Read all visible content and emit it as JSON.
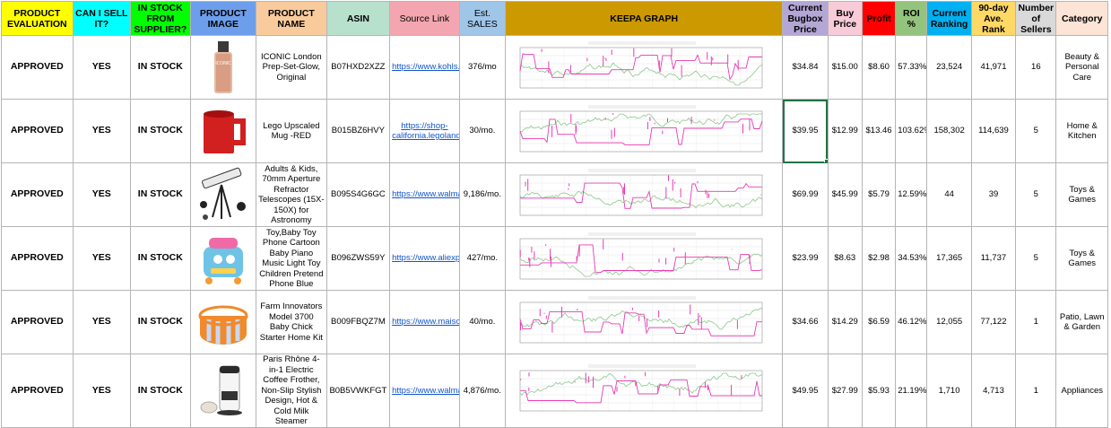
{
  "colors": {
    "yellow": "#ffff00",
    "cyan": "#00ffff",
    "green": "#00ff00",
    "blue": "#4a86e8",
    "orange": "#f6b26b",
    "mint": "#b6f0c6",
    "pink": "#f4cccc",
    "lightblue": "#cfe2f3",
    "gold": "#c99a06",
    "purple": "#b4a7d6",
    "lightpink": "#fde9ef",
    "red": "#ff0000",
    "limegreen": "#a9d08e",
    "teal": "#00b0f0",
    "olive": "#ffd966",
    "grey": "#d9d9d9",
    "peach": "#fce4d6"
  },
  "headers": [
    "PRODUCT EVALUATION",
    "CAN I SELL IT?",
    "IN STOCK FROM SUPPLIER?",
    "PRODUCT IMAGE",
    "PRODUCT NAME",
    "ASIN",
    "Source Link",
    "Est. SALES",
    "KEEPA GRAPH",
    "Current Bugbox Price",
    "Buy Price",
    "Profit",
    "ROI %",
    "Current Ranking",
    "90-day Ave. Rank",
    "Number of Sellers",
    "Category"
  ],
  "rows": [
    {
      "evaluation": "APPROVED",
      "can_sell": "YES",
      "in_stock": "IN STOCK",
      "image_icon": "cosmetic-bottle-icon",
      "name": "ICONIC London Prep-Set-Glow, Original",
      "asin": "B07HXD2XZZ",
      "link": "https://www.kohls.com",
      "sales": "376/mo",
      "bugbox": "$34.84",
      "buy": "$15.00",
      "profit": "$8.60",
      "roi": "57.33%",
      "rank": "23,524",
      "avg_rank": "41,971",
      "sellers": "16",
      "category": "Beauty & Personal Care"
    },
    {
      "evaluation": "APPROVED",
      "can_sell": "YES",
      "in_stock": "IN STOCK",
      "image_icon": "red-mug-icon",
      "name": "Lego Upscaled Mug -RED",
      "asin": "B015BZ6HVY",
      "link": "https://shop-california.legoland.com",
      "sales": "30/mo.",
      "bugbox": "$39.95",
      "buy": "$12.99",
      "profit": "$13.46",
      "roi": "103.62%",
      "rank": "158,302",
      "avg_rank": "114,639",
      "sellers": "5",
      "category": "Home & Kitchen"
    },
    {
      "evaluation": "APPROVED",
      "can_sell": "YES",
      "in_stock": "IN STOCK",
      "image_icon": "telescope-icon",
      "name": "Adults & Kids, 70mm Aperture Refractor Telescopes (15X-150X) for Astronomy",
      "asin": "B095S4G6GC",
      "link": "https://www.walmart.com",
      "sales": "9,186/mo.",
      "bugbox": "$69.99",
      "buy": "$45.99",
      "profit": "$5.79",
      "roi": "12.59%",
      "rank": "44",
      "avg_rank": "39",
      "sellers": "5",
      "category": "Toys & Games"
    },
    {
      "evaluation": "APPROVED",
      "can_sell": "YES",
      "in_stock": "IN STOCK",
      "image_icon": "toy-phone-icon",
      "name": "Toy,Baby Toy Phone Cartoon Baby Piano Music Light Toy Children Pretend Phone Blue",
      "asin": "B096ZWS59Y",
      "link": "https://www.aliexpress.us",
      "sales": "427/mo.",
      "bugbox": "$23.99",
      "buy": "$8.63",
      "profit": "$2.98",
      "roi": "34.53%",
      "rank": "17,365",
      "avg_rank": "11,737",
      "sellers": "5",
      "category": "Toys & Games"
    },
    {
      "evaluation": "APPROVED",
      "can_sell": "YES",
      "in_stock": "IN STOCK",
      "image_icon": "chick-brooder-icon",
      "name": "Farm Innovators Model 3700 Baby Chick Starter Home Kit",
      "asin": "B009FBQZ7M",
      "link": "https://www.maisontranchand.com",
      "sales": "40/mo.",
      "bugbox": "$34.66",
      "buy": "$14.29",
      "profit": "$6.59",
      "roi": "46.12%",
      "rank": "12,055",
      "avg_rank": "77,122",
      "sellers": "1",
      "category": "Patio, Lawn & Garden"
    },
    {
      "evaluation": "APPROVED",
      "can_sell": "YES",
      "in_stock": "IN STOCK",
      "image_icon": "milk-frother-icon",
      "name": "Paris Rhône 4-in-1 Electric Coffee Frother, Non-Slip Stylish Design, Hot & Cold Milk Steamer",
      "asin": "B0B5VWKFGT",
      "link": "https://www.walmart.com",
      "sales": "4,876/mo.",
      "bugbox": "$49.95",
      "buy": "$27.99",
      "profit": "$5.93",
      "roi": "21.19%",
      "rank": "1,710",
      "avg_rank": "4,713",
      "sellers": "1",
      "category": "Appliances"
    }
  ]
}
